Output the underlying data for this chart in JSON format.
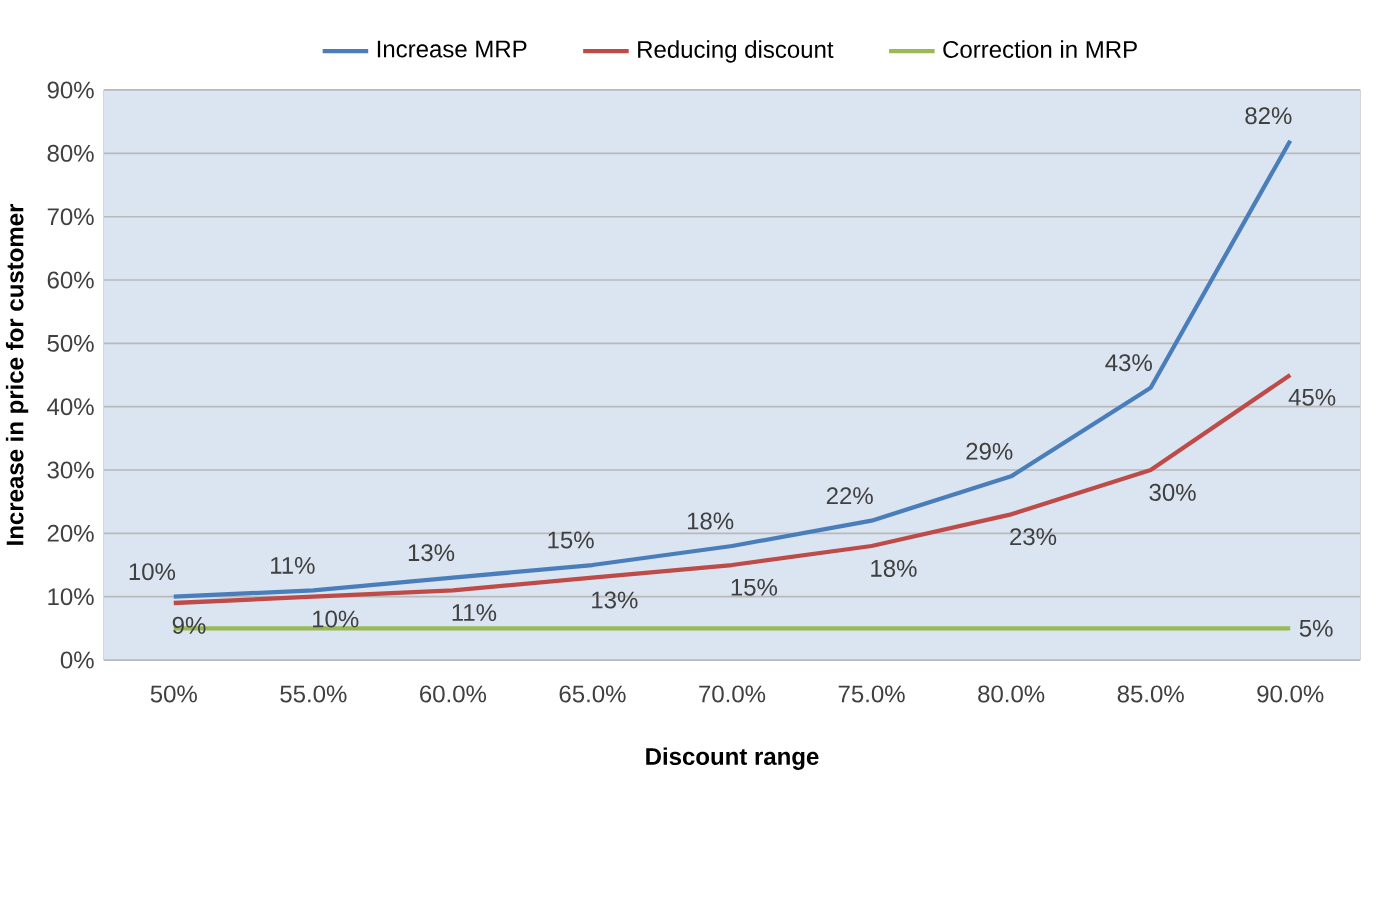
{
  "chart_data": {
    "type": "line",
    "xlabel": "Discount range",
    "ylabel": "Increase in price for customer",
    "categories": [
      "50%",
      "55.0%",
      "60.0%",
      "65.0%",
      "70.0%",
      "75.0%",
      "80.0%",
      "85.0%",
      "90.0%"
    ],
    "series": [
      {
        "name": "Increase MRP",
        "color": "#4a7ebb",
        "values": [
          10,
          11,
          13,
          15,
          18,
          22,
          29,
          43,
          82
        ],
        "value_labels": [
          "10%",
          "11%",
          "13%",
          "15%",
          "18%",
          "22%",
          "29%",
          "43%",
          "82%"
        ]
      },
      {
        "name": "Reducing discount",
        "color": "#be4b48",
        "values": [
          9,
          10,
          11,
          13,
          15,
          18,
          23,
          30,
          45
        ],
        "value_labels": [
          "9%",
          "10%",
          "11%",
          "13%",
          "15%",
          "18%",
          "23%",
          "30%",
          "45%"
        ]
      },
      {
        "name": "Correction in MRP",
        "color": "#98b954",
        "values": [
          5,
          5,
          5,
          5,
          5,
          5,
          5,
          5,
          5
        ],
        "value_labels": [
          null,
          null,
          null,
          null,
          null,
          null,
          null,
          null,
          "5%"
        ]
      }
    ],
    "ylim": [
      0,
      90
    ],
    "yticks": [
      {
        "value": 0,
        "label": "0%"
      },
      {
        "value": 10,
        "label": "10%"
      },
      {
        "value": 20,
        "label": "20%"
      },
      {
        "value": 30,
        "label": "30%"
      },
      {
        "value": 40,
        "label": "40%"
      },
      {
        "value": 50,
        "label": "50%"
      },
      {
        "value": 60,
        "label": "60%"
      },
      {
        "value": 70,
        "label": "70%"
      },
      {
        "value": 80,
        "label": "80%"
      },
      {
        "value": 90,
        "label": "90%"
      }
    ],
    "grid": "y",
    "legend": "top",
    "marker": "none",
    "line_style": "solid"
  }
}
